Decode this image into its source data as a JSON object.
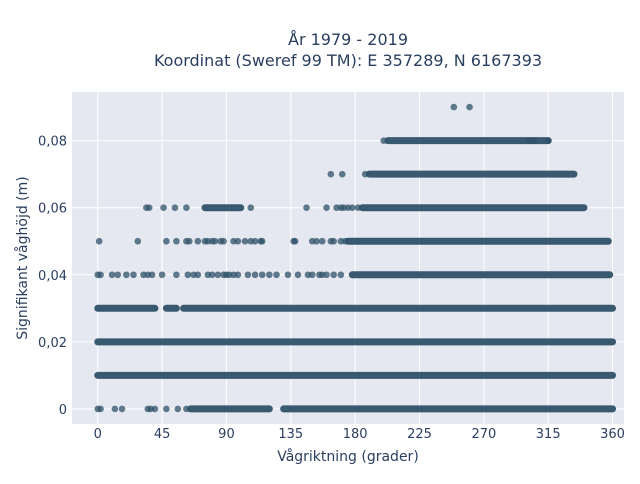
{
  "chart_data": {
    "type": "scatter",
    "title": "År 1979 - 2019",
    "subtitle": "Koordinat (Sweref 99 TM): E 357289, N 6167393",
    "xlabel": "Vågriktning (grader)",
    "ylabel": "Signifikant våghöjd (m)",
    "xlim": [
      -18,
      368
    ],
    "ylim": [
      -0.0045,
      0.0945
    ],
    "xticks": [
      0,
      45,
      90,
      135,
      180,
      225,
      270,
      315,
      360
    ],
    "xtick_labels": [
      "0",
      "45",
      "90",
      "135",
      "180",
      "225",
      "270",
      "315",
      "360"
    ],
    "yticks": [
      0,
      0.02,
      0.04,
      0.06,
      0.08
    ],
    "ytick_labels": [
      "0",
      "0,02",
      "0,04",
      "0,06",
      "0,08"
    ],
    "grid": true,
    "marker_color": "#2f5168",
    "background_color": "#e5e8f0",
    "series": [
      {
        "values": [
          {
            "y": 0.01,
            "ranges": [
              [
                0,
                360
              ]
            ],
            "points": []
          },
          {
            "y": 0.02,
            "ranges": [
              [
                0,
                360
              ]
            ],
            "points": []
          },
          {
            "y": 0,
            "ranges": [
              [
                65,
                120
              ],
              [
                130,
                360
              ]
            ],
            "points": [
              0,
              2,
              12,
              17,
              35,
              37,
              40,
              48,
              56,
              62
            ]
          },
          {
            "y": 0.03,
            "ranges": [
              [
                0,
                40
              ],
              [
                48,
                55
              ],
              [
                60,
                360
              ]
            ],
            "points": []
          },
          {
            "y": 0.04,
            "ranges": [
              [
                178,
                358
              ]
            ],
            "points": [
              0,
              2,
              10,
              14,
              20,
              25,
              32,
              35,
              38,
              45,
              55,
              63,
              67,
              70,
              77,
              80,
              84,
              88,
              90,
              92,
              95,
              98,
              105,
              110,
              115,
              120,
              125,
              133,
              140,
              147,
              150,
              155,
              157,
              160,
              165,
              170
            ]
          },
          {
            "y": 0.05,
            "ranges": [
              [
                175,
                357
              ]
            ],
            "points": [
              1,
              28,
              48,
              55,
              62,
              64,
              70,
              75,
              77,
              80,
              82,
              86,
              88,
              95,
              98,
              103,
              107,
              110,
              114,
              115,
              137,
              138,
              150,
              153,
              157,
              163,
              165,
              170,
              173
            ]
          },
          {
            "y": 0.06,
            "ranges": [
              [
                75,
                100
              ],
              [
                185,
                340
              ]
            ],
            "points": [
              34,
              36,
              46,
              54,
              62,
              107,
              146,
              160,
              167,
              170,
              172,
              175,
              178,
              182
            ]
          },
          {
            "y": 0.07,
            "ranges": [
              [
                190,
                333
              ]
            ],
            "points": [
              163,
              171,
              187
            ]
          },
          {
            "y": 0.08,
            "ranges": [
              [
                203,
                315
              ]
            ],
            "points": [
              200,
              302,
              305,
              315
            ]
          },
          {
            "y": 0.09,
            "ranges": [],
            "points": [
              249,
              260
            ]
          }
        ]
      }
    ]
  }
}
